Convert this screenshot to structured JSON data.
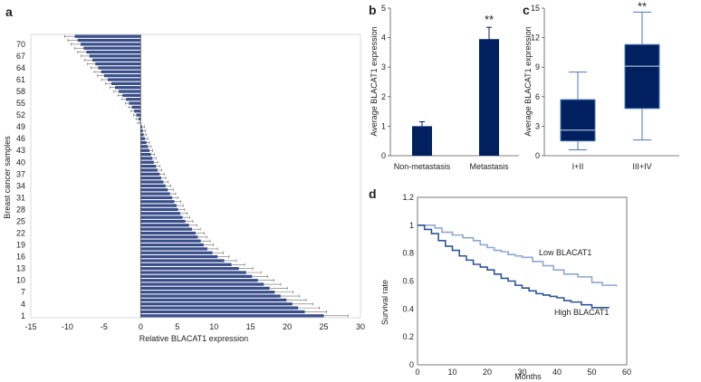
{
  "panel_labels": {
    "a": "a",
    "b": "b",
    "c": "c",
    "d": "d"
  },
  "colors": {
    "bar": "#3a4f8a",
    "dark": "#002060",
    "low_line": "#8fa8cf",
    "high_line": "#2f5597",
    "axis": "#555555"
  },
  "chart_data": [
    {
      "id": "a",
      "type": "bar",
      "orientation": "horizontal",
      "xlabel": "Relative  BLACAT1  expression",
      "ylabel": "Breast cancer samples",
      "xlim": [
        -15,
        30
      ],
      "xticks": [
        -15,
        -10,
        -5,
        0,
        5,
        10,
        15,
        20,
        25,
        30
      ],
      "yticks": [
        1,
        4,
        7,
        10,
        13,
        16,
        19,
        22,
        25,
        28,
        31,
        34,
        37,
        40,
        43,
        46,
        49,
        52,
        55,
        58,
        61,
        64,
        67,
        70
      ],
      "n_samples": 72,
      "values": [
        25,
        22.4,
        21.5,
        20.7,
        19.9,
        19.1,
        18.3,
        17.6,
        16.8,
        16.0,
        15.2,
        14.4,
        13.4,
        12.4,
        11.4,
        10.5,
        9.8,
        9.1,
        8.6,
        8.2,
        7.8,
        7.5,
        7.0,
        6.6,
        6.1,
        5.7,
        5.4,
        5.1,
        4.9,
        4.6,
        4.3,
        4.0,
        3.7,
        3.4,
        3.1,
        2.8,
        2.6,
        2.3,
        2.1,
        1.8,
        1.6,
        1.4,
        1.2,
        1.0,
        0.8,
        0.6,
        0.4,
        0.3,
        0.2,
        -0.1,
        -0.3,
        -0.6,
        -0.9,
        -1.2,
        -1.6,
        -2.0,
        -2.5,
        -3.0,
        -3.5,
        -4.0,
        -4.5,
        -5.0,
        -5.4,
        -5.8,
        -6.2,
        -6.6,
        -7.0,
        -7.4,
        -7.8,
        -8.2,
        -8.6,
        -9.0
      ],
      "error_fraction": 0.12
    },
    {
      "id": "b",
      "type": "bar",
      "categories": [
        "Non-metastasis",
        "Metastasis"
      ],
      "values": [
        1.0,
        3.95
      ],
      "errors": [
        0.15,
        0.4
      ],
      "ylabel": "Average  BLACAT1  expression",
      "ylim": [
        0,
        5
      ],
      "yticks": [
        0,
        1,
        2,
        3,
        4,
        5
      ],
      "annotations": [
        {
          "category": "Metastasis",
          "text": "**"
        }
      ]
    },
    {
      "id": "c",
      "type": "box",
      "categories": [
        "I+II",
        "III+IV"
      ],
      "boxes": [
        {
          "min": 0.6,
          "q1": 1.5,
          "median": 2.6,
          "q3": 5.7,
          "max": 8.5
        },
        {
          "min": 1.6,
          "q1": 4.8,
          "median": 9.1,
          "q3": 11.3,
          "max": 14.6
        }
      ],
      "ylabel": "Average  BLACAT1  expression",
      "ylim": [
        0,
        15
      ],
      "yticks": [
        0,
        3,
        6,
        9,
        12,
        15
      ],
      "annotations": [
        {
          "category": "III+IV",
          "text": "**"
        }
      ]
    },
    {
      "id": "d",
      "type": "line",
      "subtype": "survival-step",
      "xlabel": "Months",
      "ylabel": "Survival  rate",
      "xlim": [
        0,
        60
      ],
      "xticks": [
        0,
        10,
        20,
        30,
        40,
        50,
        60
      ],
      "ylim": [
        0,
        1.2
      ],
      "yticks": [
        0,
        0.2,
        0.4,
        0.6,
        0.8,
        1,
        1.2
      ],
      "series": [
        {
          "name": "Low BLACAT1",
          "points": [
            [
              0,
              1.0
            ],
            [
              3,
              1.0
            ],
            [
              5,
              0.98
            ],
            [
              7,
              0.95
            ],
            [
              10,
              0.93
            ],
            [
              13,
              0.91
            ],
            [
              16,
              0.89
            ],
            [
              18,
              0.86
            ],
            [
              20,
              0.84
            ],
            [
              22,
              0.82
            ],
            [
              24,
              0.81
            ],
            [
              26,
              0.79
            ],
            [
              28,
              0.78
            ],
            [
              30,
              0.77
            ],
            [
              33,
              0.74
            ],
            [
              36,
              0.71
            ],
            [
              39,
              0.68
            ],
            [
              42,
              0.65
            ],
            [
              46,
              0.63
            ],
            [
              50,
              0.59
            ],
            [
              53,
              0.57
            ],
            [
              57,
              0.56
            ]
          ]
        },
        {
          "name": "High BLACAT1",
          "points": [
            [
              0,
              1.0
            ],
            [
              2,
              0.97
            ],
            [
              4,
              0.94
            ],
            [
              6,
              0.89
            ],
            [
              8,
              0.85
            ],
            [
              10,
              0.82
            ],
            [
              12,
              0.78
            ],
            [
              14,
              0.75
            ],
            [
              16,
              0.72
            ],
            [
              18,
              0.7
            ],
            [
              20,
              0.68
            ],
            [
              22,
              0.65
            ],
            [
              24,
              0.62
            ],
            [
              26,
              0.6
            ],
            [
              28,
              0.57
            ],
            [
              30,
              0.55
            ],
            [
              32,
              0.53
            ],
            [
              34,
              0.51
            ],
            [
              36,
              0.5
            ],
            [
              38,
              0.49
            ],
            [
              40,
              0.48
            ],
            [
              42,
              0.46
            ],
            [
              44,
              0.45
            ],
            [
              47,
              0.43
            ],
            [
              50,
              0.41
            ],
            [
              53,
              0.41
            ],
            [
              55,
              0.41
            ]
          ]
        }
      ],
      "legend_labels": {
        "low": "Low BLACAT1",
        "high": "High BLACAT1"
      }
    }
  ]
}
